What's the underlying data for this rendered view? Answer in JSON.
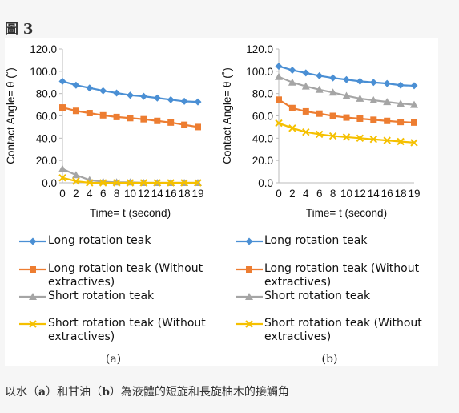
{
  "figure": {
    "label_prefix": "圖",
    "label_number": "3",
    "caption": {
      "p1": "以水（",
      "a": "a",
      "p2": "）和甘油（",
      "b": "b",
      "p3": "）為液體的短旋和長旋柚木的接觸角"
    }
  },
  "chart_data": [
    {
      "type": "line",
      "panel_label": "(a)",
      "ylabel": "Contact Angle= θ (˚)",
      "xlabel": "Time= t (second)",
      "ylim": [
        0,
        120
      ],
      "yticks": [
        "0.0",
        "20.0",
        "40.0",
        "60.0",
        "80.0",
        "100.0",
        "120.0"
      ],
      "x": [
        0,
        2,
        4,
        6,
        8,
        10,
        12,
        14,
        16,
        18,
        19
      ],
      "xtick_labels": [
        "0",
        "2",
        "4",
        "6",
        "8",
        "10",
        "12",
        "14",
        "16",
        "18",
        "19"
      ],
      "legend_position": "bottom",
      "series": [
        {
          "name": "Long rotation teak",
          "color": "#4a8fd4",
          "marker": "diamond",
          "values": [
            91,
            87.5,
            85,
            82.5,
            80.5,
            78.5,
            77.5,
            76,
            74.5,
            73,
            72.5
          ]
        },
        {
          "name": "Long rotation teak (Without extractives)",
          "color": "#ed7d31",
          "marker": "square",
          "values": [
            67.5,
            64.5,
            62.5,
            60.5,
            59,
            58,
            57,
            55.5,
            54,
            52,
            50
          ]
        },
        {
          "name": "Short rotation teak",
          "color": "#a5a5a5",
          "marker": "triangle",
          "values": [
            12.5,
            7,
            2.5,
            1,
            0.5,
            0.5,
            0,
            0,
            0,
            0,
            0
          ]
        },
        {
          "name": "Short rotation teak (Without extractives)",
          "color": "#f5c000",
          "marker": "x",
          "values": [
            4.5,
            1.5,
            0,
            0,
            0,
            0,
            0,
            0,
            0,
            0,
            0
          ]
        }
      ]
    },
    {
      "type": "line",
      "panel_label": "(b)",
      "ylabel": "Contact Angle= θ (˚)",
      "xlabel": "Time= t (second)",
      "ylim": [
        0,
        120
      ],
      "yticks": [
        "0.0",
        "20.0",
        "40.0",
        "60.0",
        "80.0",
        "100.0",
        "120.0"
      ],
      "x": [
        0,
        2,
        4,
        6,
        8,
        10,
        12,
        14,
        16,
        18,
        19
      ],
      "xtick_labels": [
        "0",
        "2",
        "4",
        "6",
        "8",
        "10",
        "12",
        "14",
        "16",
        "18",
        "19"
      ],
      "legend_position": "bottom",
      "series": [
        {
          "name": "Long rotation teak",
          "color": "#4a8fd4",
          "marker": "diamond",
          "values": [
            104.5,
            101,
            98.5,
            96,
            94,
            92.5,
            91,
            90,
            89,
            87.5,
            87
          ]
        },
        {
          "name": "Long rotation teak (Without extractives)",
          "color": "#ed7d31",
          "marker": "square",
          "values": [
            74.5,
            67,
            64,
            62,
            60,
            58.5,
            57.5,
            56.5,
            55.5,
            54.5,
            54
          ]
        },
        {
          "name": "Short rotation teak",
          "color": "#a5a5a5",
          "marker": "triangle",
          "values": [
            95,
            90,
            86.5,
            83.5,
            81,
            78,
            75.5,
            74,
            72.5,
            71,
            70
          ]
        },
        {
          "name": "Short rotation teak (Without extractives)",
          "color": "#f5c000",
          "marker": "x",
          "values": [
            53.5,
            49,
            45.5,
            43.5,
            42,
            41,
            40,
            39,
            38,
            37,
            36
          ]
        }
      ]
    }
  ]
}
